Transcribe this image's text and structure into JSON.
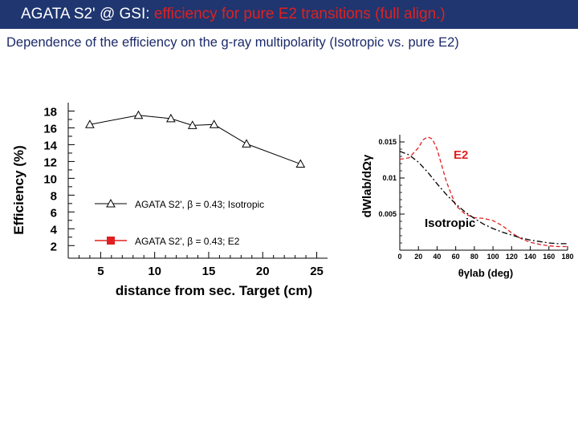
{
  "header": {
    "title_main": "AGATA S2' @ GSI: ",
    "title_accent": "efficiency for pure E2 transitions (full align.)"
  },
  "subtitle": {
    "prefix": "Dependence of the efficiency on the g-ray multipolarity (",
    "isotropic": "Isotropic",
    "suffix": " vs. pure E2)"
  },
  "colors": {
    "header_bg": "#1f3670",
    "accent": "#e02020",
    "isotropic_line": "#000000",
    "e2_line": "#e02020"
  },
  "chart_data": [
    {
      "type": "line",
      "xlabel": "distance from sec. Target (cm)",
      "ylabel": "Efficiency (%)",
      "xlim": [
        2,
        26
      ],
      "ylim": [
        0.5,
        19
      ],
      "xticks": [
        5,
        10,
        15,
        20,
        25
      ],
      "yticks": [
        2,
        4,
        6,
        8,
        10,
        12,
        14,
        16,
        18
      ],
      "grid": false,
      "legend_position": "lower-left",
      "series": [
        {
          "name": "AGATA S2', β = 0.43; Isotropic",
          "color": "#000000",
          "marker": "open-triangle",
          "x": [
            4,
            8.5,
            11.5,
            13.5,
            15.5,
            18.5,
            23.5
          ],
          "y": [
            16.4,
            17.5,
            17.1,
            16.3,
            16.4,
            14.1,
            11.7
          ]
        },
        {
          "name": "AGATA S2', β = 0.43; E2",
          "color": "#e02020",
          "marker": "filled-square",
          "x": [],
          "y": []
        }
      ]
    },
    {
      "type": "line",
      "xlabel": "θγlab (deg)",
      "ylabel": "dWlab/dΩγ",
      "xlim": [
        0,
        180
      ],
      "ylim": [
        0,
        0.016
      ],
      "xticks": [
        0,
        20,
        40,
        60,
        80,
        100,
        120,
        140,
        160,
        180
      ],
      "yticks": [
        0.005,
        0.01,
        0.015
      ],
      "ytick_labels": [
        "0.005",
        "0.01",
        "0.015"
      ],
      "grid": false,
      "series": [
        {
          "name": "E2",
          "color": "#e02020",
          "style": "dashed",
          "x": [
            0,
            10,
            20,
            25,
            30,
            35,
            40,
            50,
            60,
            70,
            80,
            90,
            100,
            110,
            120,
            130,
            140,
            150,
            160,
            170,
            180
          ],
          "y": [
            0.0126,
            0.0128,
            0.0142,
            0.0153,
            0.0157,
            0.0154,
            0.014,
            0.0095,
            0.0062,
            0.005,
            0.0045,
            0.0044,
            0.0041,
            0.0034,
            0.0024,
            0.0016,
            0.0011,
            0.0008,
            0.0006,
            0.0005,
            0.0005
          ]
        },
        {
          "name": "Isotropic",
          "color": "#000000",
          "style": "dash-dot",
          "x": [
            0,
            10,
            20,
            30,
            40,
            50,
            60,
            70,
            80,
            90,
            100,
            110,
            120,
            130,
            140,
            150,
            160,
            170,
            180
          ],
          "y": [
            0.0137,
            0.0132,
            0.0122,
            0.0108,
            0.0092,
            0.0077,
            0.0064,
            0.0053,
            0.0044,
            0.0036,
            0.003,
            0.0025,
            0.0021,
            0.0017,
            0.0014,
            0.0012,
            0.001,
            0.0009,
            0.0009
          ]
        }
      ]
    }
  ]
}
